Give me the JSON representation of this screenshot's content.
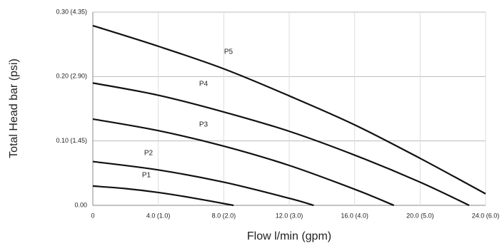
{
  "chart_data": {
    "type": "line",
    "xlabel": "Flow l/min (gpm)",
    "ylabel": "Total Head bar (psi)",
    "xlim": [
      0,
      24
    ],
    "ylim": [
      0,
      0.3
    ],
    "xticks": [
      0,
      {
        "value": 4,
        "label": "4.0 (1.0)"
      },
      {
        "value": 8,
        "label": "8.0 (2.0)"
      },
      {
        "value": 12,
        "label": "12.0 (3.0)"
      },
      {
        "value": 16,
        "label": "16.0 (4.0)"
      },
      {
        "value": 20,
        "label": "20.0 (5.0)"
      },
      {
        "value": 24,
        "label": "24.0 (6.0)"
      }
    ],
    "yticks": [
      {
        "value": 0,
        "label": "0.00"
      },
      {
        "value": 0.1,
        "label": "0.10 (1.45)"
      },
      {
        "value": 0.2,
        "label": "0.20 (2.90)"
      },
      {
        "value": 0.3,
        "label": "0.30 (4.35)"
      }
    ],
    "grid": true,
    "series": [
      {
        "name": "P1",
        "color": "#111111",
        "x": [
          0,
          2,
          4,
          6,
          8.6
        ],
        "values": [
          0.03,
          0.026,
          0.02,
          0.012,
          0
        ]
      },
      {
        "name": "P2",
        "color": "#111111",
        "x": [
          0,
          4,
          8,
          12,
          13.5
        ],
        "values": [
          0.068,
          0.055,
          0.036,
          0.011,
          0
        ]
      },
      {
        "name": "P3",
        "color": "#111111",
        "x": [
          0,
          4,
          8,
          12,
          16,
          18.4
        ],
        "values": [
          0.134,
          0.116,
          0.092,
          0.062,
          0.025,
          0
        ]
      },
      {
        "name": "P4",
        "color": "#111111",
        "x": [
          0,
          4,
          8,
          12,
          16,
          20,
          23
        ],
        "values": [
          0.19,
          0.171,
          0.145,
          0.115,
          0.078,
          0.036,
          0
        ]
      },
      {
        "name": "P5",
        "color": "#111111",
        "x": [
          0,
          4,
          8,
          12,
          16,
          20,
          24
        ],
        "values": [
          0.279,
          0.247,
          0.212,
          0.17,
          0.125,
          0.073,
          0.018
        ]
      }
    ]
  }
}
